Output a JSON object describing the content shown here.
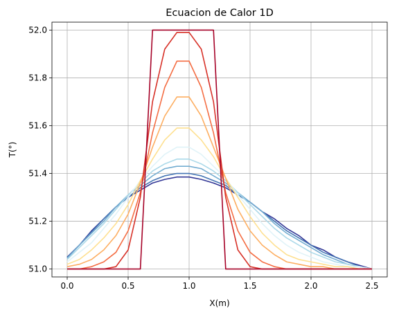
{
  "chart_data": {
    "type": "line",
    "title": "Ecuacion de Calor 1D",
    "xlabel": "X(m)",
    "ylabel": "T(°)",
    "xlim": [
      -0.125,
      2.625
    ],
    "ylim": [
      50.967,
      52.033
    ],
    "xticks": [
      0.0,
      0.5,
      1.0,
      1.5,
      2.0,
      2.5
    ],
    "xtick_labels": [
      "0.0",
      "0.5",
      "1.0",
      "1.5",
      "2.0",
      "2.5"
    ],
    "yticks": [
      51.0,
      51.2,
      51.4,
      51.6,
      51.8,
      52.0
    ],
    "ytick_labels": [
      "51.0",
      "51.2",
      "51.4",
      "51.6",
      "51.8",
      "52.0"
    ],
    "grid": true,
    "legend": "none",
    "colormap": "RdYlBu",
    "x": [
      0.0,
      0.1,
      0.2,
      0.3,
      0.4,
      0.5,
      0.6,
      0.7,
      0.8,
      0.9,
      1.0,
      1.1,
      1.2,
      1.3,
      1.4,
      1.5,
      1.6,
      1.7,
      1.8,
      1.9,
      2.0,
      2.1,
      2.2,
      2.3,
      2.4,
      2.5
    ],
    "series_colors": [
      "#a50026",
      "#d73027",
      "#f46d43",
      "#fdae61",
      "#fee090",
      "#e0f3f8",
      "#abd9e9",
      "#74add1",
      "#4575b4",
      "#313695"
    ],
    "series": [
      {
        "values": [
          51.0,
          51.0,
          51.0,
          51.0,
          51.0,
          51.0,
          51.0,
          52.0,
          52.0,
          52.0,
          52.0,
          52.0,
          52.0,
          51.0,
          51.0,
          51.0,
          51.0,
          51.0,
          51.0,
          51.0,
          51.0,
          51.0,
          51.0,
          51.0,
          51.0,
          51.0
        ]
      },
      {
        "values": [
          51.0,
          51.0,
          51.0,
          51.0,
          51.01,
          51.08,
          51.3,
          51.7,
          51.92,
          51.99,
          51.99,
          51.92,
          51.7,
          51.3,
          51.08,
          51.01,
          51.0,
          51.0,
          51.0,
          51.0,
          51.0,
          51.0,
          51.0,
          51.0,
          51.0,
          51.0
        ]
      },
      {
        "values": [
          51.0,
          51.0,
          51.01,
          51.03,
          51.07,
          51.16,
          51.32,
          51.57,
          51.76,
          51.87,
          51.87,
          51.76,
          51.57,
          51.32,
          51.16,
          51.07,
          51.03,
          51.01,
          51.0,
          51.0,
          51.0,
          51.0,
          51.0,
          51.0,
          51.0,
          51.0
        ]
      },
      {
        "values": [
          51.01,
          51.02,
          51.04,
          51.08,
          51.14,
          51.23,
          51.36,
          51.51,
          51.64,
          51.72,
          51.72,
          51.64,
          51.51,
          51.38,
          51.25,
          51.16,
          51.1,
          51.06,
          51.03,
          51.02,
          51.01,
          51.01,
          51.0,
          51.0,
          51.0,
          51.0
        ]
      },
      {
        "values": [
          51.02,
          51.04,
          51.08,
          51.13,
          51.19,
          51.27,
          51.37,
          51.46,
          51.54,
          51.59,
          51.59,
          51.54,
          51.47,
          51.38,
          51.3,
          51.22,
          51.15,
          51.1,
          51.06,
          51.04,
          51.03,
          51.02,
          51.01,
          51.01,
          51.0,
          51.0
        ]
      },
      {
        "values": [
          51.03,
          51.07,
          51.11,
          51.17,
          51.23,
          51.3,
          51.37,
          51.43,
          51.48,
          51.51,
          51.51,
          51.48,
          51.43,
          51.38,
          51.31,
          51.25,
          51.19,
          51.14,
          51.1,
          51.07,
          51.05,
          51.03,
          51.02,
          51.01,
          51.01,
          51.0
        ]
      },
      {
        "values": [
          51.04,
          51.09,
          51.14,
          51.19,
          51.25,
          51.31,
          51.36,
          51.41,
          51.44,
          51.46,
          51.46,
          51.44,
          51.41,
          51.37,
          51.32,
          51.27,
          51.22,
          51.17,
          51.13,
          51.1,
          51.07,
          51.05,
          51.03,
          51.02,
          51.01,
          51.0
        ]
      },
      {
        "values": [
          51.045,
          51.1,
          51.15,
          51.2,
          51.26,
          51.31,
          51.35,
          51.39,
          51.42,
          51.43,
          51.43,
          51.42,
          51.39,
          51.36,
          51.32,
          51.28,
          51.24,
          51.19,
          51.15,
          51.12,
          51.09,
          51.06,
          51.04,
          51.02,
          51.01,
          51.0
        ]
      },
      {
        "values": [
          51.048,
          51.1,
          51.155,
          51.21,
          51.26,
          51.3,
          51.34,
          51.37,
          51.39,
          51.4,
          51.4,
          51.39,
          51.37,
          51.35,
          51.31,
          51.28,
          51.24,
          51.2,
          51.16,
          51.13,
          51.1,
          51.07,
          51.05,
          51.03,
          51.01,
          51.0
        ]
      },
      {
        "values": [
          51.05,
          51.1,
          51.16,
          51.21,
          51.26,
          51.3,
          51.33,
          51.36,
          51.375,
          51.385,
          51.385,
          51.375,
          51.36,
          51.34,
          51.31,
          51.28,
          51.24,
          51.21,
          51.17,
          51.14,
          51.1,
          51.08,
          51.05,
          51.03,
          51.015,
          51.0
        ]
      }
    ]
  }
}
